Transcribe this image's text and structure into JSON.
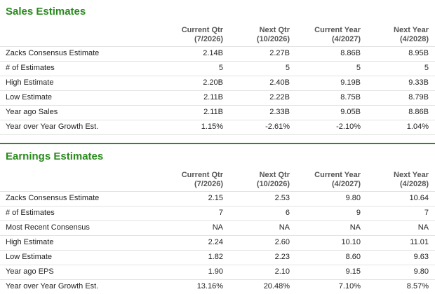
{
  "sections": [
    {
      "title": "Sales Estimates",
      "columns": [
        {
          "name": "Current Qtr",
          "period": "(7/2026)"
        },
        {
          "name": "Next Qtr",
          "period": "(10/2026)"
        },
        {
          "name": "Current Year",
          "period": "(4/2027)"
        },
        {
          "name": "Next Year",
          "period": "(4/2028)"
        }
      ],
      "rows": [
        [
          "Zacks Consensus Estimate",
          "2.14B",
          "2.27B",
          "8.86B",
          "8.95B"
        ],
        [
          "# of Estimates",
          "5",
          "5",
          "5",
          "5"
        ],
        [
          "High Estimate",
          "2.20B",
          "2.40B",
          "9.19B",
          "9.33B"
        ],
        [
          "Low Estimate",
          "2.11B",
          "2.22B",
          "8.75B",
          "8.79B"
        ],
        [
          "Year ago Sales",
          "2.11B",
          "2.33B",
          "9.05B",
          "8.86B"
        ],
        [
          "Year over Year Growth Est.",
          "1.15%",
          "-2.61%",
          "-2.10%",
          "1.04%"
        ]
      ]
    },
    {
      "title": "Earnings Estimates",
      "columns": [
        {
          "name": "Current Qtr",
          "period": "(7/2026)"
        },
        {
          "name": "Next Qtr",
          "period": "(10/2026)"
        },
        {
          "name": "Current Year",
          "period": "(4/2027)"
        },
        {
          "name": "Next Year",
          "period": "(4/2028)"
        }
      ],
      "rows": [
        [
          "Zacks Consensus Estimate",
          "2.15",
          "2.53",
          "9.80",
          "10.64"
        ],
        [
          "# of Estimates",
          "7",
          "6",
          "9",
          "7"
        ],
        [
          "Most Recent Consensus",
          "NA",
          "NA",
          "NA",
          "NA"
        ],
        [
          "High Estimate",
          "2.24",
          "2.60",
          "10.10",
          "11.01"
        ],
        [
          "Low Estimate",
          "1.82",
          "2.23",
          "8.60",
          "9.63"
        ],
        [
          "Year ago EPS",
          "1.90",
          "2.10",
          "9.15",
          "9.80"
        ],
        [
          "Year over Year Growth Est.",
          "13.16%",
          "20.48%",
          "7.10%",
          "8.57%"
        ]
      ]
    }
  ]
}
